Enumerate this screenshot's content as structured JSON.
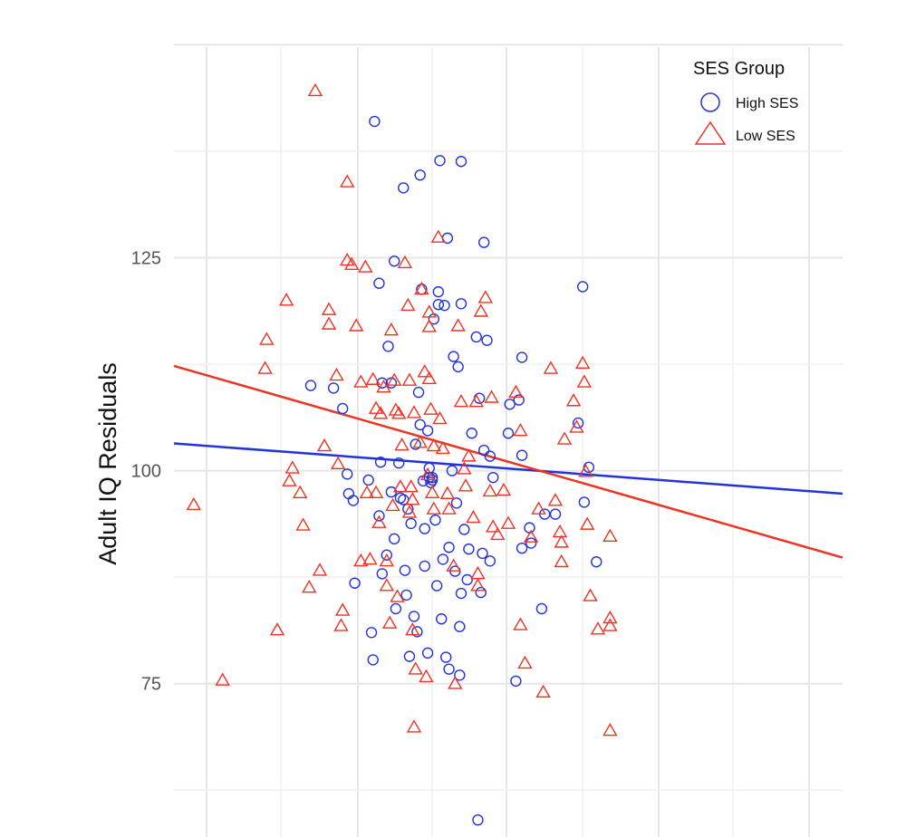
{
  "chart_data": {
    "type": "scatter",
    "title": "",
    "xlabel": "",
    "ylabel": "Adult IQ Residuals",
    "ylim": [
      57,
      151
    ],
    "xlim": [
      -2.95,
      1.45
    ],
    "yticks": [
      75,
      100,
      125
    ],
    "grid": true,
    "legend": {
      "title": "SES Group",
      "position": "top-right"
    },
    "colors": {
      "high": "#2233dd",
      "low": "#ee3322"
    },
    "series": [
      {
        "name": "High SES",
        "marker": "circle",
        "points": [
          [
            -2.05,
            110
          ],
          [
            -1.9,
            109.7
          ],
          [
            -1.84,
            107.3
          ],
          [
            -1.81,
            99.6
          ],
          [
            -1.8,
            97.3
          ],
          [
            -1.77,
            96.5
          ],
          [
            -1.76,
            86.8
          ],
          [
            -1.67,
            98.9
          ],
          [
            -1.65,
            81
          ],
          [
            -1.64,
            77.8
          ],
          [
            -1.63,
            141
          ],
          [
            -1.6,
            94.7
          ],
          [
            -1.6,
            122
          ],
          [
            -1.58,
            110.3
          ],
          [
            -1.59,
            101
          ],
          [
            -1.58,
            87.9
          ],
          [
            -1.55,
            90.1
          ],
          [
            -1.54,
            114.6
          ],
          [
            -1.52,
            110.3
          ],
          [
            -1.52,
            97.5
          ],
          [
            -1.5,
            92
          ],
          [
            -1.5,
            124.6
          ],
          [
            -1.49,
            83.8
          ],
          [
            -1.47,
            100.9
          ],
          [
            -1.44,
            133.2
          ],
          [
            -1.44,
            96.6
          ],
          [
            -1.43,
            88.3
          ],
          [
            -1.42,
            85.4
          ],
          [
            -1.41,
            95.5
          ],
          [
            -1.4,
            78.2
          ],
          [
            -1.39,
            93.8
          ],
          [
            -1.37,
            82.9
          ],
          [
            -1.36,
            103.1
          ],
          [
            -1.35,
            81.1
          ],
          [
            -1.34,
            109.2
          ],
          [
            -1.33,
            134.7
          ],
          [
            -1.33,
            105.4
          ],
          [
            -1.32,
            121.3
          ],
          [
            -1.31,
            98.8
          ],
          [
            -1.3,
            88.8
          ],
          [
            -1.3,
            93.2
          ],
          [
            -1.28,
            78.6
          ],
          [
            -1.28,
            104.7
          ],
          [
            -1.27,
            99.2
          ],
          [
            -1.26,
            98.6
          ],
          [
            -1.25,
            98.9
          ],
          [
            -1.25,
            99.2
          ],
          [
            -1.24,
            117.8
          ],
          [
            -1.23,
            94.2
          ],
          [
            -1.22,
            86.5
          ],
          [
            -1.21,
            121
          ],
          [
            -1.21,
            119.5
          ],
          [
            -1.2,
            136.4
          ],
          [
            -1.19,
            82.6
          ],
          [
            -1.18,
            89.6
          ],
          [
            -1.17,
            119.4
          ],
          [
            -1.16,
            78.1
          ],
          [
            -1.15,
            127.3
          ],
          [
            -1.14,
            91
          ],
          [
            -1.14,
            76.7
          ],
          [
            -1.12,
            100
          ],
          [
            -1.11,
            113.4
          ],
          [
            -1.1,
            88.2
          ],
          [
            -1.09,
            96.2
          ],
          [
            -1.08,
            112.2
          ],
          [
            -1.07,
            76
          ],
          [
            -1.07,
            81.7
          ],
          [
            -1.06,
            85.6
          ],
          [
            -1.06,
            119.6
          ],
          [
            -1.06,
            136.3
          ],
          [
            -1.04,
            93.1
          ],
          [
            -1.02,
            87.2
          ],
          [
            -1.01,
            90.8
          ],
          [
            -0.99,
            104.4
          ],
          [
            -0.96,
            115.7
          ],
          [
            -0.94,
            108.5
          ],
          [
            -0.93,
            85.7
          ],
          [
            -0.92,
            90.3
          ],
          [
            -0.91,
            102.4
          ],
          [
            -0.91,
            126.8
          ],
          [
            -0.89,
            115.3
          ],
          [
            -0.87,
            101.7
          ],
          [
            -0.87,
            89.4
          ],
          [
            -0.85,
            99.2
          ],
          [
            -0.75,
            104.4
          ],
          [
            -0.74,
            107.8
          ],
          [
            -0.7,
            75.3
          ],
          [
            -0.68,
            108.3
          ],
          [
            -0.66,
            113.3
          ],
          [
            -0.66,
            101.8
          ],
          [
            -0.66,
            90.9
          ],
          [
            -0.61,
            93.3
          ],
          [
            -0.6,
            91.5
          ],
          [
            -0.53,
            83.8
          ],
          [
            -0.51,
            94.9
          ],
          [
            -0.44,
            94.9
          ],
          [
            -0.29,
            105.6
          ],
          [
            -0.26,
            121.6
          ],
          [
            -0.25,
            96.3
          ],
          [
            -0.22,
            100.4
          ],
          [
            -0.17,
            89.3
          ],
          [
            -0.95,
            59
          ],
          [
            -1.27,
            100.3
          ],
          [
            -1.46,
            96.8
          ]
        ]
      },
      {
        "name": "Low SES",
        "marker": "triangle",
        "points": [
          [
            -2.82,
            96
          ],
          [
            -2.63,
            75.4
          ],
          [
            -2.34,
            115.4
          ],
          [
            -2.35,
            112
          ],
          [
            -2.27,
            81.3
          ],
          [
            -2.21,
            120
          ],
          [
            -2.19,
            98.8
          ],
          [
            -2.17,
            100.3
          ],
          [
            -2.12,
            97.4
          ],
          [
            -2.1,
            93.6
          ],
          [
            -2.06,
            86.3
          ],
          [
            -2.02,
            144.6
          ],
          [
            -1.99,
            88.3
          ],
          [
            -1.96,
            102.9
          ],
          [
            -1.93,
            118.9
          ],
          [
            -1.93,
            117.2
          ],
          [
            -1.88,
            111.2
          ],
          [
            -1.87,
            100.8
          ],
          [
            -1.85,
            81.8
          ],
          [
            -1.84,
            83.6
          ],
          [
            -1.81,
            124.7
          ],
          [
            -1.81,
            133.9
          ],
          [
            -1.78,
            124.2
          ],
          [
            -1.75,
            117
          ],
          [
            -1.72,
            110.4
          ],
          [
            -1.72,
            89.4
          ],
          [
            -1.69,
            123.9
          ],
          [
            -1.68,
            97.4
          ],
          [
            -1.66,
            89.6
          ],
          [
            -1.64,
            110.7
          ],
          [
            -1.62,
            107.3
          ],
          [
            -1.62,
            97.4
          ],
          [
            -1.6,
            93.9
          ],
          [
            -1.59,
            106.7
          ],
          [
            -1.57,
            109.8
          ],
          [
            -1.55,
            89.4
          ],
          [
            -1.55,
            86.5
          ],
          [
            -1.53,
            82.1
          ],
          [
            -1.52,
            116.5
          ],
          [
            -1.51,
            95.9
          ],
          [
            -1.5,
            110.6
          ],
          [
            -1.49,
            107.1
          ],
          [
            -1.48,
            85.2
          ],
          [
            -1.47,
            106.7
          ],
          [
            -1.46,
            98.1
          ],
          [
            -1.45,
            103
          ],
          [
            -1.43,
            124.4
          ],
          [
            -1.41,
            119.4
          ],
          [
            -1.4,
            95.1
          ],
          [
            -1.4,
            110.6
          ],
          [
            -1.39,
            98.1
          ],
          [
            -1.38,
            96.6
          ],
          [
            -1.38,
            81.3
          ],
          [
            -1.37,
            106.8
          ],
          [
            -1.37,
            69.9
          ],
          [
            -1.36,
            76.7
          ],
          [
            -1.33,
            103.3
          ],
          [
            -1.32,
            121.3
          ],
          [
            -1.3,
            111.6
          ],
          [
            -1.29,
            75.8
          ],
          [
            -1.28,
            99.5
          ],
          [
            -1.27,
            110.8
          ],
          [
            -1.27,
            118.6
          ],
          [
            -1.27,
            116.9
          ],
          [
            -1.26,
            107.2
          ],
          [
            -1.25,
            97.4
          ],
          [
            -1.24,
            102.9
          ],
          [
            -1.24,
            95.5
          ],
          [
            -1.21,
            127.4
          ],
          [
            -1.2,
            106.1
          ],
          [
            -1.18,
            102.6
          ],
          [
            -1.15,
            97.3
          ],
          [
            -1.14,
            95.5
          ],
          [
            -1.11,
            88.8
          ],
          [
            -1.1,
            75
          ],
          [
            -1.08,
            117
          ],
          [
            -1.06,
            108.1
          ],
          [
            -1.04,
            100.2
          ],
          [
            -1.03,
            98.2
          ],
          [
            -1.01,
            101.7
          ],
          [
            -0.98,
            94.5
          ],
          [
            -0.96,
            108.1
          ],
          [
            -0.95,
            87.9
          ],
          [
            -0.95,
            86.5
          ],
          [
            -0.93,
            118.7
          ],
          [
            -0.9,
            120.3
          ],
          [
            -0.87,
            97.6
          ],
          [
            -0.86,
            108.6
          ],
          [
            -0.85,
            93.4
          ],
          [
            -0.82,
            92.5
          ],
          [
            -0.78,
            97.7
          ],
          [
            -0.75,
            93.8
          ],
          [
            -0.7,
            109.2
          ],
          [
            -0.67,
            104.7
          ],
          [
            -0.67,
            81.9
          ],
          [
            -0.64,
            77.4
          ],
          [
            -0.6,
            92.2
          ],
          [
            -0.55,
            95.5
          ],
          [
            -0.52,
            74
          ],
          [
            -0.47,
            112
          ],
          [
            -0.44,
            96.5
          ],
          [
            -0.41,
            92.8
          ],
          [
            -0.4,
            91.6
          ],
          [
            -0.4,
            89.3
          ],
          [
            -0.38,
            103.7
          ],
          [
            -0.32,
            108.2
          ],
          [
            -0.3,
            105.1
          ],
          [
            -0.26,
            112.6
          ],
          [
            -0.25,
            110.4
          ],
          [
            -0.24,
            99.9
          ],
          [
            -0.23,
            93.7
          ],
          [
            -0.21,
            85.3
          ],
          [
            -0.16,
            81.4
          ],
          [
            -0.08,
            92.3
          ],
          [
            -0.08,
            82.7
          ],
          [
            -0.08,
            81.8
          ],
          [
            -0.08,
            69.5
          ]
        ]
      }
    ],
    "fit_lines": [
      {
        "name": "High SES",
        "x": [
          -2.95,
          1.45
        ],
        "y": [
          103.2,
          97.3
        ]
      },
      {
        "name": "Low SES",
        "x": [
          -2.95,
          1.45
        ],
        "y": [
          112.3,
          89.8
        ]
      }
    ]
  },
  "legend": {
    "title": "SES Group",
    "items": [
      "High SES",
      "Low SES"
    ]
  }
}
